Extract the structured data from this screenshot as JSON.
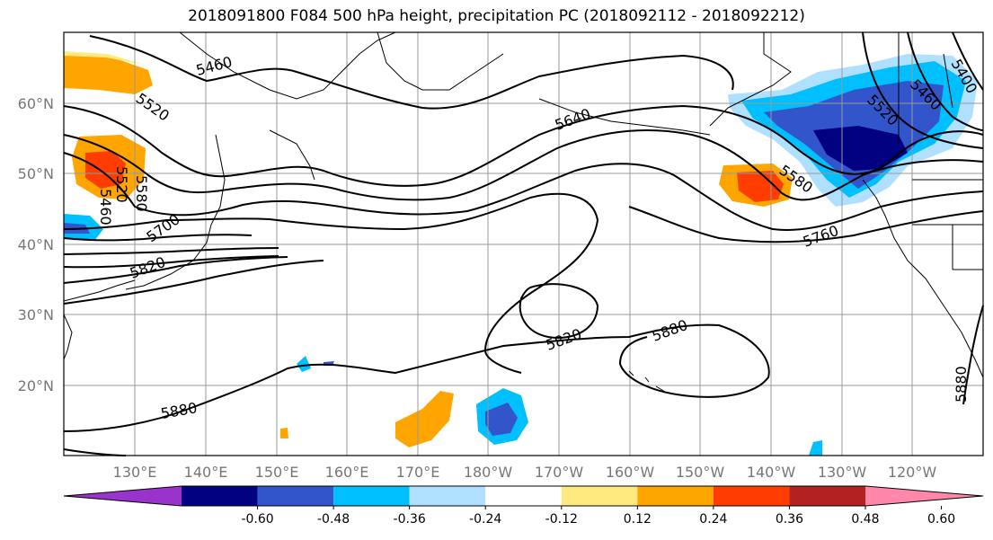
{
  "title": "2018091800 F084 500 hPa height, precipitation PC (2018092112 - 2018092212)",
  "map": {
    "lon_labels": [
      "130°E",
      "140°E",
      "150°E",
      "160°E",
      "170°E",
      "180°W",
      "170°W",
      "160°W",
      "150°W",
      "140°W",
      "130°W",
      "120°W"
    ],
    "lat_labels": [
      "60°N",
      "50°N",
      "40°N",
      "30°N",
      "20°N"
    ],
    "contour_labels": [
      "5460",
      "5520",
      "5580",
      "5520",
      "5460",
      "5700",
      "5820",
      "5640",
      "5580",
      "5520",
      "5460",
      "5400",
      "5760",
      "5820",
      "5880",
      "5880",
      "5880"
    ],
    "contour_label_names": [
      "label-5460-west",
      "label-5520-west",
      "label-5580-west",
      "label-5520-vert",
      "label-5460-vert",
      "label-5700",
      "label-5820-west",
      "label-5640",
      "label-5580-east",
      "label-5520-east",
      "label-5460-east",
      "label-5400",
      "label-5760",
      "label-5820-high",
      "label-5880-center",
      "label-5880-west",
      "label-5880-east"
    ]
  },
  "colorbar": {
    "colors": [
      "#9933cc",
      "#000080",
      "#3355cc",
      "#00bfff",
      "#b0e0ff",
      "#ffffff",
      "#ffea80",
      "#ffa500",
      "#ff3d00",
      "#b22222",
      "#ff88aa"
    ],
    "tick_labels": [
      "-0.60",
      "-0.48",
      "-0.36",
      "-0.24",
      "-0.12",
      "0.12",
      "0.24",
      "0.36",
      "0.48",
      "0.60"
    ]
  }
}
